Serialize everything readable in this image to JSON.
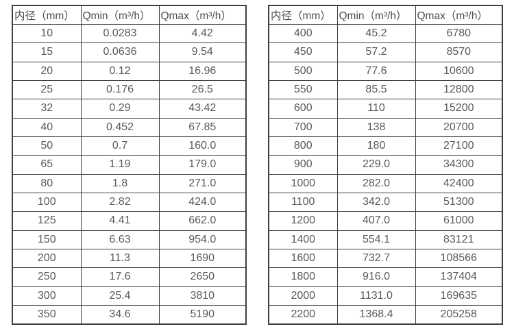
{
  "colors": {
    "background": "#ffffff",
    "border": "#3e3e3e",
    "header_text": "#4c4c4c",
    "cell_text": "#58595b"
  },
  "tables": [
    {
      "name": "flow-table-small-diameters",
      "headers": [
        "内径（mm）",
        "Qmin（m³/h）",
        "Qmax（m³/h）"
      ],
      "rows": [
        [
          "10",
          "0.0283",
          "4.42"
        ],
        [
          "15",
          "0.0636",
          "9.54"
        ],
        [
          "20",
          "0.12",
          "16.96"
        ],
        [
          "25",
          "0.176",
          "26.5"
        ],
        [
          "32",
          "0.29",
          "43.42"
        ],
        [
          "40",
          "0.452",
          "67.85"
        ],
        [
          "50",
          "0.7",
          "160.0"
        ],
        [
          "65",
          "1.19",
          "179.0"
        ],
        [
          "80",
          "1.8",
          "271.0"
        ],
        [
          "100",
          "2.82",
          "424.0"
        ],
        [
          "125",
          "4.41",
          "662.0"
        ],
        [
          "150",
          "6.63",
          "954.0"
        ],
        [
          "200",
          "11.3",
          "1690"
        ],
        [
          "250",
          "17.6",
          "2650"
        ],
        [
          "300",
          "25.4",
          "3810"
        ],
        [
          "350",
          "34.6",
          "5190"
        ]
      ]
    },
    {
      "name": "flow-table-large-diameters",
      "headers": [
        "内径（mm）",
        "Qmin（m³/h）",
        "Qmax（m³/h）"
      ],
      "rows": [
        [
          "400",
          "45.2",
          "6780"
        ],
        [
          "450",
          "57.2",
          "8570"
        ],
        [
          "500",
          "77.6",
          "10600"
        ],
        [
          "550",
          "85.5",
          "12800"
        ],
        [
          "600",
          "110",
          "15200"
        ],
        [
          "700",
          "138",
          "20700"
        ],
        [
          "800",
          "180",
          "27100"
        ],
        [
          "900",
          "229.0",
          "34300"
        ],
        [
          "1000",
          "282.0",
          "42400"
        ],
        [
          "1100",
          "342.0",
          "51300"
        ],
        [
          "1200",
          "407.0",
          "61000"
        ],
        [
          "1400",
          "554.1",
          "83121"
        ],
        [
          "1600",
          "732.7",
          "108566"
        ],
        [
          "1800",
          "916.0",
          "137404"
        ],
        [
          "2000",
          "1131.0",
          "169635"
        ],
        [
          "2200",
          "1368.4",
          "205258"
        ]
      ]
    }
  ]
}
